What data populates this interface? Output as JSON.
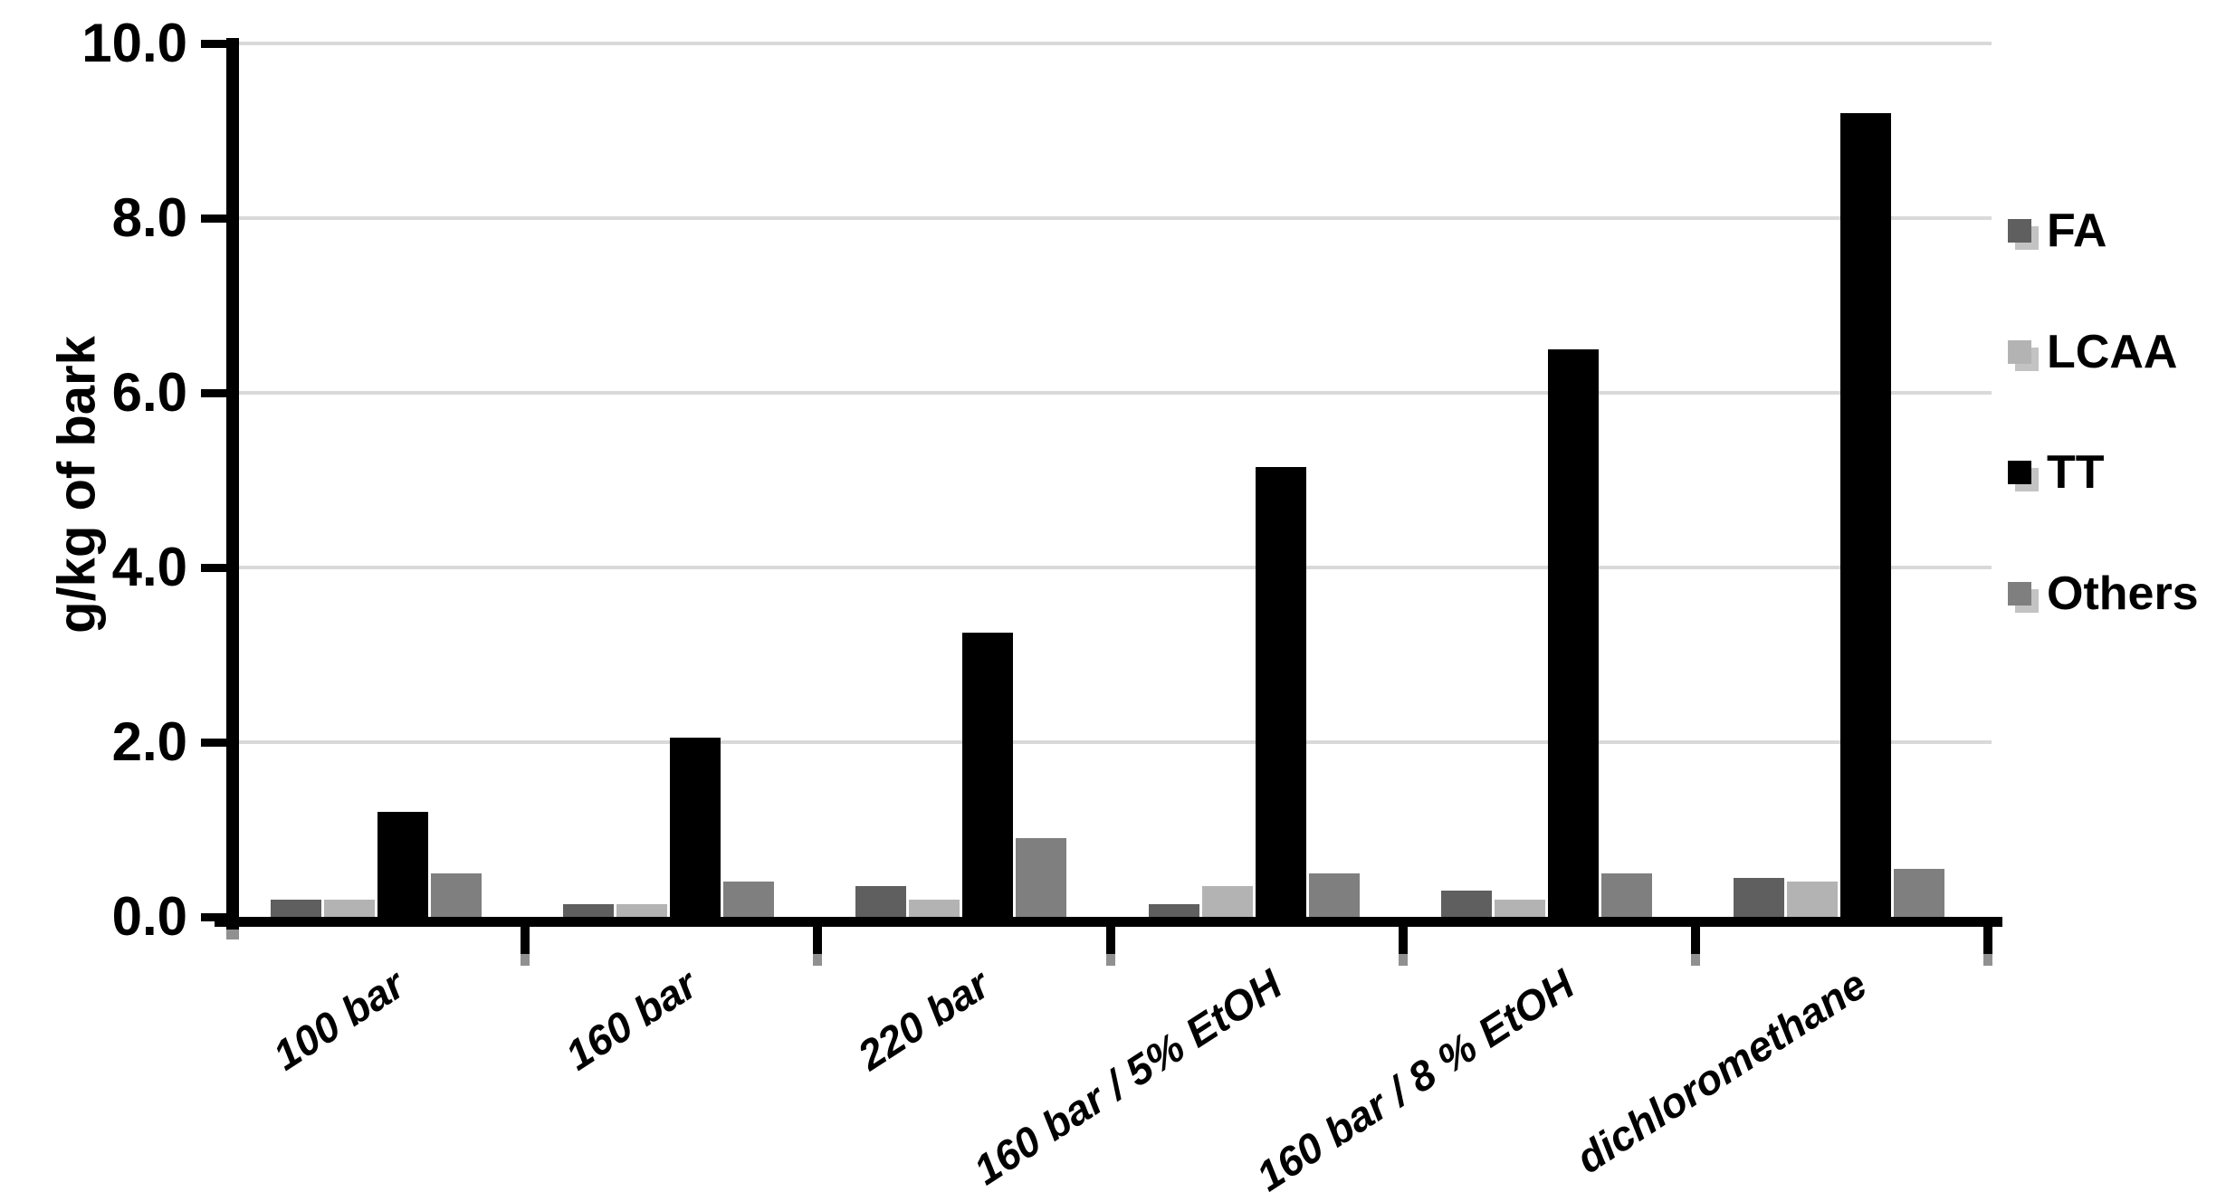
{
  "figure": {
    "background": "#ffffff",
    "axis_color": "#000000",
    "gridline_color": "#d9d9d9",
    "tick_shadow_color": "#909090",
    "legend_shadow_color": "#c3c3c3"
  },
  "chart_data": {
    "type": "bar",
    "title": "",
    "xlabel": "",
    "ylabel": "g/kg of bark",
    "ylim": [
      0,
      10
    ],
    "ytick_step": 2,
    "ytick_labels": [
      "0.0",
      "2.0",
      "4.0",
      "6.0",
      "8.0",
      "10.0"
    ],
    "grid": true,
    "legend_position": "right",
    "categories": [
      "100 bar",
      "160 bar",
      "220 bar",
      "160 bar / 5% EtOH",
      "160 bar / 8 % EtOH",
      "dichloromethane"
    ],
    "series": [
      {
        "name": "FA",
        "color": "#5f5f5f",
        "values": [
          0.2,
          0.15,
          0.35,
          0.15,
          0.3,
          0.45
        ]
      },
      {
        "name": "LCAA",
        "color": "#b3b3b3",
        "values": [
          0.2,
          0.15,
          0.2,
          0.35,
          0.2,
          0.4
        ]
      },
      {
        "name": "TT",
        "color": "#000000",
        "values": [
          1.2,
          2.05,
          3.25,
          5.15,
          6.5,
          9.2
        ]
      },
      {
        "name": "Others",
        "color": "#7f7f7f",
        "values": [
          0.5,
          0.4,
          0.9,
          0.5,
          0.5,
          0.55
        ]
      }
    ]
  }
}
